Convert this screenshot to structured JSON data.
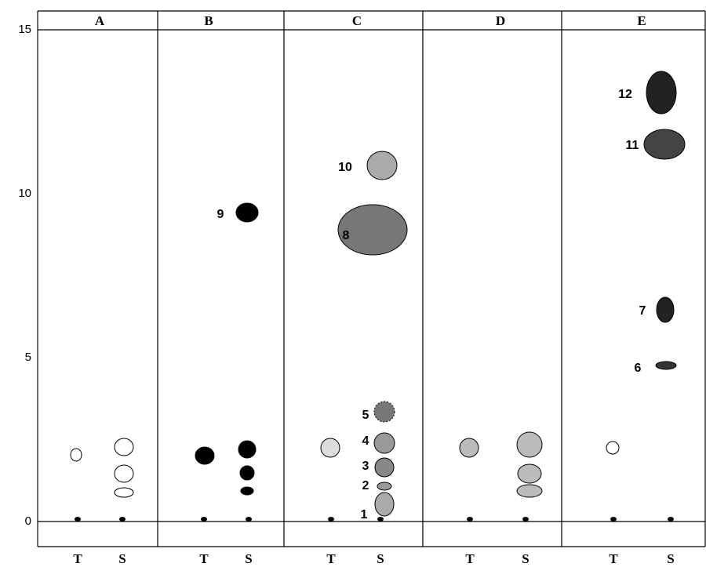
{
  "axis": {
    "ticks": [
      0,
      5,
      10,
      15
    ]
  },
  "lanes": [
    {
      "name": "A",
      "tracks": [
        "T",
        "S"
      ]
    },
    {
      "name": "B",
      "tracks": [
        "T",
        "S"
      ]
    },
    {
      "name": "C",
      "tracks": [
        "T",
        "S"
      ]
    },
    {
      "name": "D",
      "tracks": [
        "T",
        "S"
      ]
    },
    {
      "name": "E",
      "tracks": [
        "T",
        "S"
      ]
    }
  ],
  "spot_labels": [
    "1",
    "2",
    "3",
    "4",
    "5",
    "6",
    "7",
    "8",
    "9",
    "10",
    "11",
    "12"
  ]
}
